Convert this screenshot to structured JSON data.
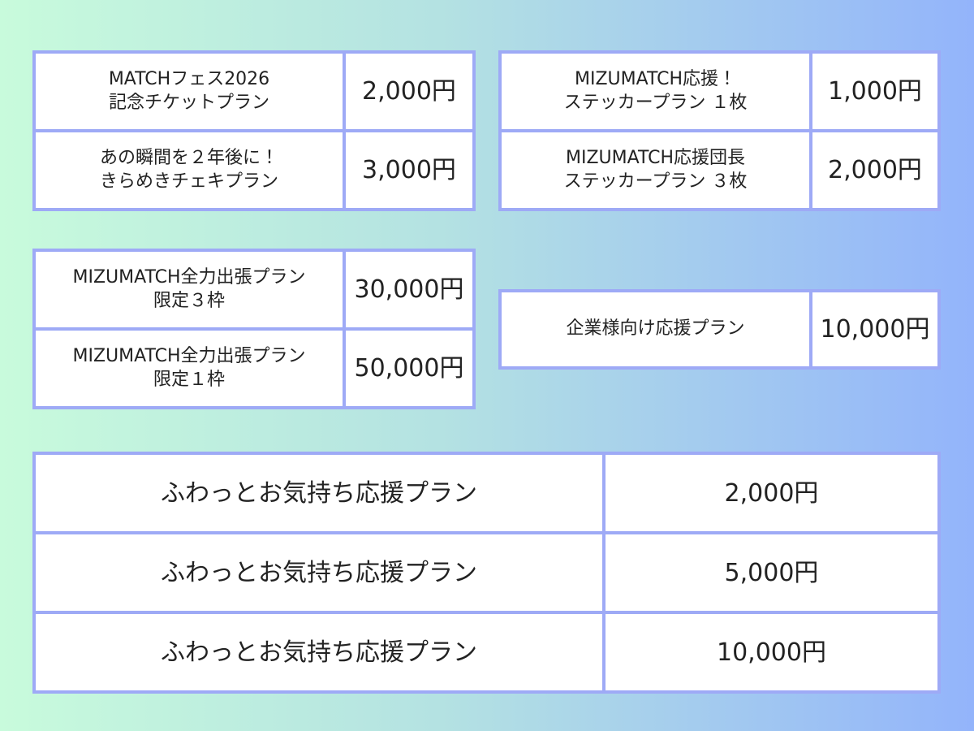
{
  "tables": [
    {
      "rows": [
        {
          "name": [
            "MATCHフェス2026",
            "記念チケットプラン"
          ],
          "price": "2,000円"
        },
        {
          "name": [
            "あの瞬間を２年後に！",
            "きらめきチェキプラン"
          ],
          "price": "3,000円"
        }
      ]
    },
    {
      "rows": [
        {
          "name": [
            "MIZUMATCH応援！",
            "ステッカープラン １枚"
          ],
          "price": "1,000円"
        },
        {
          "name": [
            "MIZUMATCH応援団長",
            "ステッカープラン ３枚"
          ],
          "price": "2,000円"
        }
      ]
    },
    {
      "rows": [
        {
          "name": [
            "MIZUMATCH全力出張プラン",
            "限定３枠"
          ],
          "price": "30,000円"
        },
        {
          "name": [
            "MIZUMATCH全力出張プラン",
            "限定１枠"
          ],
          "price": "50,000円"
        }
      ]
    },
    {
      "rows": [
        {
          "name": [
            "企業様向け応援プラン"
          ],
          "price": "10,000円"
        }
      ]
    },
    {
      "rows": [
        {
          "name": [
            "ふわっとお気持ち応援プラン"
          ],
          "price": "2,000円"
        },
        {
          "name": [
            "ふわっとお気持ち応援プラン"
          ],
          "price": "5,000円"
        },
        {
          "name": [
            "ふわっとお気持ち応援プラン"
          ],
          "price": "10,000円"
        }
      ]
    }
  ]
}
